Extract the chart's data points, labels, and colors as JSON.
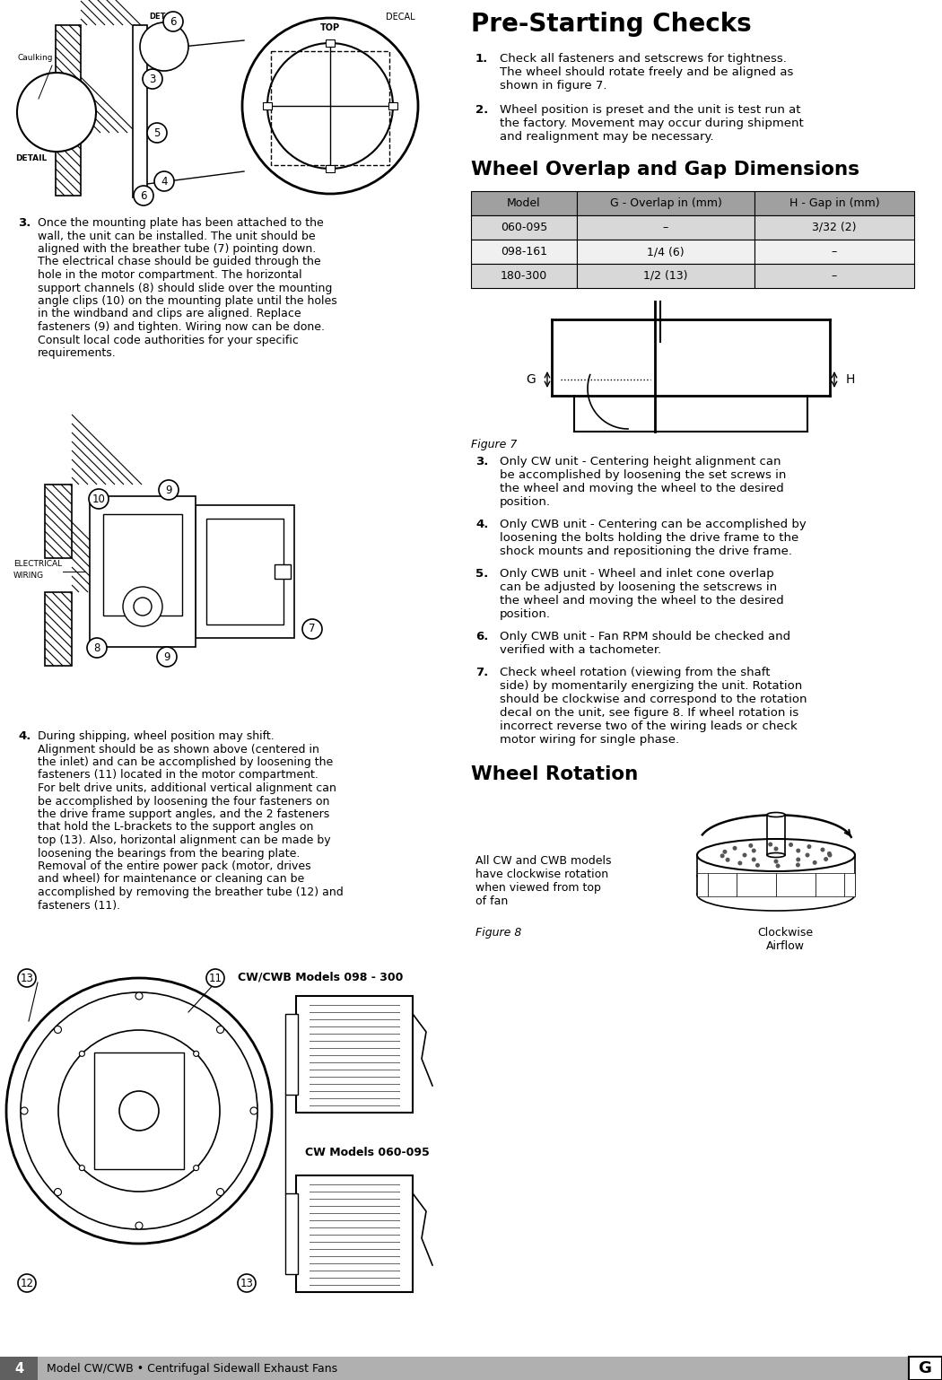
{
  "page_width": 10.5,
  "page_height": 15.38,
  "bg_color": "#ffffff",
  "header_title": "Pre-Starting Checks",
  "pre_starting_items": [
    "Check all fasteners and setscrews for tightness.\nThe wheel should rotate freely and be aligned as\nshown in figure 7.",
    "Wheel position is preset and the unit is test run at\nthe factory. Movement may occur during shipment\nand realignment may be necessary."
  ],
  "wheel_overlap_title": "Wheel Overlap and Gap Dimensions",
  "table_headers": [
    "Model",
    "G - Overlap in (mm)",
    "H - Gap in (mm)"
  ],
  "table_rows": [
    [
      "060-095",
      "–",
      "3/32 (2)"
    ],
    [
      "098-161",
      "1/4 (6)",
      "–"
    ],
    [
      "180-300",
      "1/2 (13)",
      "–"
    ]
  ],
  "table_header_bg": "#a0a0a0",
  "table_row_bg_odd": "#d8d8d8",
  "table_row_bg_even": "#f0f0f0",
  "figure7_label": "Figure 7",
  "pre_starting_items_right": [
    "Only CW unit - Centering height alignment can\nbe accomplished by loosening the set screws in\nthe wheel and moving the wheel to the desired\nposition.",
    "Only CWB unit - Centering can be accomplished by\nloosening the bolts holding the drive frame to the\nshock mounts and repositioning the drive frame.",
    "Only CWB unit - Wheel and inlet cone overlap\ncan be adjusted by loosening the setscrews in\nthe wheel and moving the wheel to the desired\nposition.",
    "Only CWB unit - Fan RPM should be checked and\nverified with a tachometer.",
    "Check wheel rotation (viewing from the shaft\nside) by momentarily energizing the unit. Rotation\nshould be clockwise and correspond to the rotation\ndecal on the unit, see figure 8. If wheel rotation is\nincorrect reverse two of the wiring leads or check\nmotor wiring for single phase."
  ],
  "wheel_rotation_title": "Wheel Rotation",
  "wheel_rotation_text": "All CW and CWB models\nhave clockwise rotation\nwhen viewed from top\nof fan",
  "figure8_label": "Figure 8",
  "clockwise_label": "Clockwise\nAirflow",
  "step3_text": "Once the mounting plate has been attached to the\nwall, the unit can be installed. The unit should be\naligned with the breather tube (7) pointing down.\nThe electrical chase should be guided through the\nhole in the motor compartment. The horizontal\nsupport channels (8) should slide over the mounting\nangle clips (10) on the mounting plate until the holes\nin the windband and clips are aligned. Replace\nfasteners (9) and tighten. Wiring now can be done.\nConsult local code authorities for your specific\nrequirements.",
  "step4_text": "During shipping, wheel position may shift.\nAlignment should be as shown above (centered in\nthe inlet) and can be accomplished by loosening the\nfasteners (11) located in the motor compartment.\nFor belt drive units, additional vertical alignment can\nbe accomplished by loosening the four fasteners on\nthe drive frame support angles, and the 2 fasteners\nthat hold the L-brackets to the support angles on\ntop (13). Also, horizontal alignment can be made by\nloosening the bearings from the bearing plate.\nRemoval of the entire power pack (motor, drives\nand wheel) for maintenance or cleaning can be\naccomplished by removing the breather tube (12) and\nfasteners (11).",
  "bottom_label": "Model CW/CWB • Centrifugal Sidewall Exhaust Fans",
  "page_num": "4",
  "cw_cwb_label": "CW/CWB Models 098 - 300",
  "cw_label": "CW Models 060-095"
}
